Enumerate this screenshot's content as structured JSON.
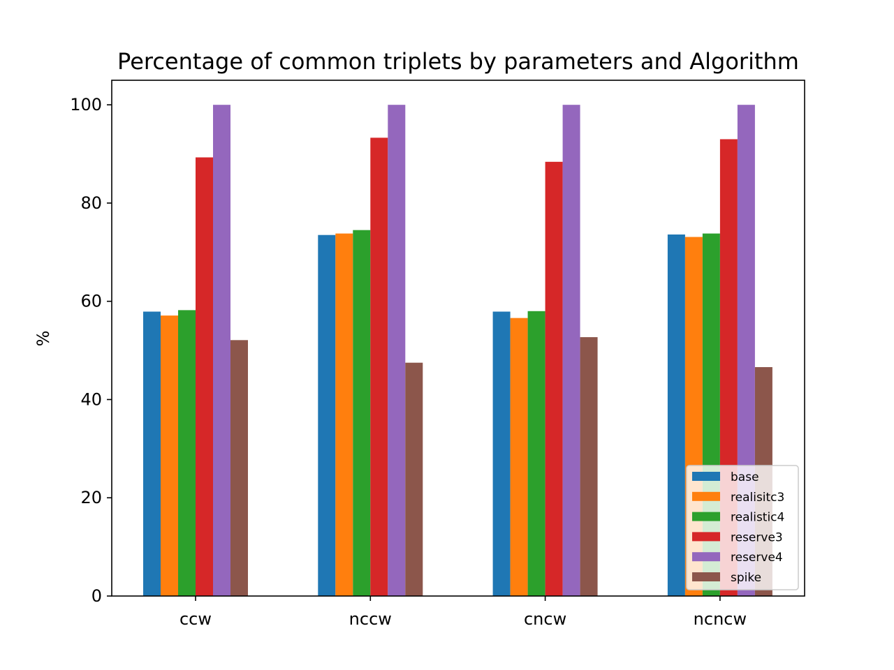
{
  "chart_data": {
    "type": "bar",
    "title": "Percentage of common triplets by parameters and Algorithm",
    "xlabel": "",
    "ylabel": "%",
    "categories": [
      "ccw",
      "nccw",
      "cncw",
      "ncncw"
    ],
    "ylim": [
      0,
      105
    ],
    "yticks": [
      "0",
      "20",
      "40",
      "60",
      "80",
      "100"
    ],
    "grid": false,
    "legend_position": "lower-right",
    "series": [
      {
        "name": "base",
        "color": "#1f77b4",
        "values": [
          57.9,
          73.5,
          57.9,
          73.6
        ]
      },
      {
        "name": "realisitc3",
        "color": "#ff7f0e",
        "values": [
          57.1,
          73.8,
          56.6,
          73.1
        ]
      },
      {
        "name": "realistic4",
        "color": "#2ca02c",
        "values": [
          58.2,
          74.5,
          58.0,
          73.8
        ]
      },
      {
        "name": "reserve3",
        "color": "#d62728",
        "values": [
          89.3,
          93.3,
          88.4,
          93.0
        ]
      },
      {
        "name": "reserve4",
        "color": "#9467bd",
        "values": [
          100.0,
          100.0,
          100.0,
          100.0
        ]
      },
      {
        "name": "spike",
        "color": "#8c564b",
        "values": [
          52.1,
          47.5,
          52.7,
          46.6
        ]
      }
    ]
  }
}
